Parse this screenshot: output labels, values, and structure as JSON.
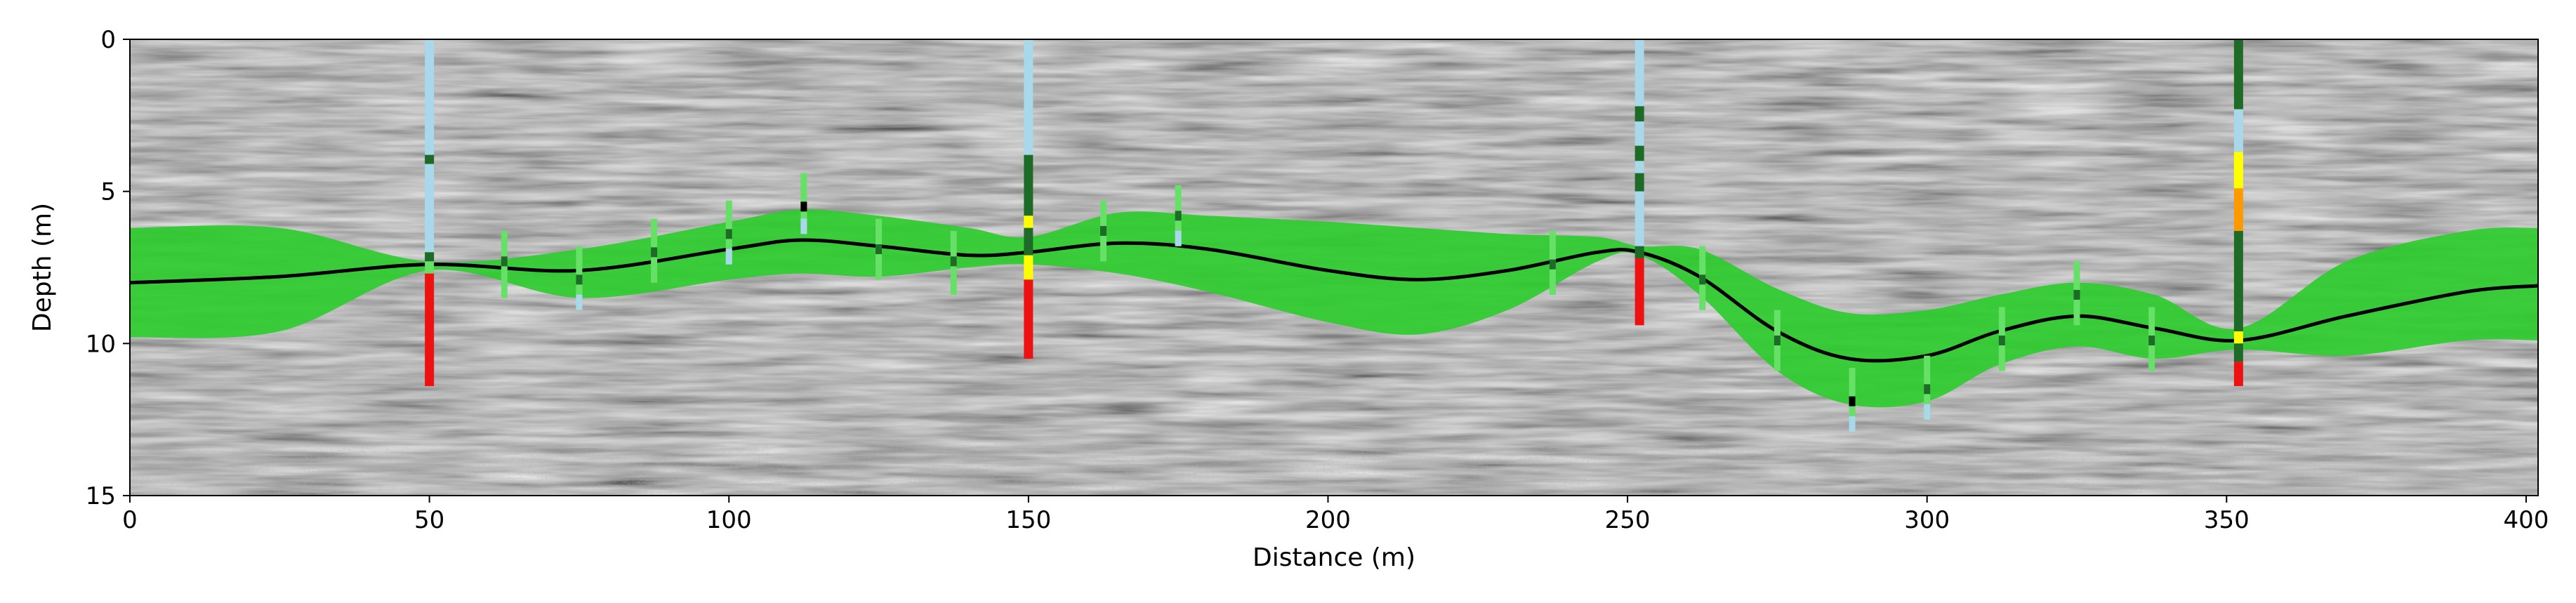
{
  "chart_data": {
    "type": "line",
    "title": "",
    "xlabel": "Distance (m)",
    "ylabel": "Depth (m)",
    "xlim": [
      0,
      402
    ],
    "ylim": [
      15,
      0
    ],
    "x_ticks": [
      0,
      50,
      100,
      150,
      200,
      250,
      300,
      350,
      400
    ],
    "y_ticks": [
      0,
      5,
      10,
      15
    ],
    "grid": false,
    "legend": "none",
    "background": "grayscale radargram (ground-penetrating radar section)",
    "colors": {
      "band": "#2ecc2e",
      "curve": "#000000",
      "light_blue": "#a8d8ea",
      "dark_green": "#1e6b28",
      "light_green": "#66e066",
      "red": "#ee1111",
      "yellow": "#ffff00",
      "orange": "#ff9900",
      "black": "#000000"
    },
    "series": [
      {
        "kind": "curve",
        "x": [
          0,
          25,
          50,
          75,
          100,
          112,
          125,
          140,
          150,
          165,
          180,
          200,
          215,
          230,
          245,
          252,
          262,
          275,
          287,
          300,
          312,
          325,
          338,
          352,
          370,
          390,
          402
        ],
        "y": [
          8.0,
          7.8,
          7.4,
          7.6,
          6.9,
          6.6,
          6.8,
          7.1,
          7.0,
          6.7,
          6.9,
          7.6,
          7.9,
          7.6,
          7.0,
          7.0,
          7.8,
          9.6,
          10.5,
          10.4,
          9.6,
          9.1,
          9.5,
          9.9,
          9.1,
          8.3,
          8.1
        ]
      },
      {
        "kind": "band",
        "x": [
          0,
          25,
          50,
          75,
          100,
          112,
          125,
          140,
          150,
          165,
          180,
          200,
          215,
          230,
          245,
          252,
          262,
          275,
          287,
          300,
          312,
          325,
          338,
          352,
          370,
          390,
          402
        ],
        "lower": [
          6.2,
          6.2,
          7.3,
          6.9,
          6.0,
          5.6,
          5.8,
          6.2,
          6.5,
          5.7,
          5.8,
          6.0,
          6.2,
          6.4,
          6.5,
          6.8,
          6.9,
          8.2,
          9.0,
          8.9,
          8.4,
          8.0,
          8.4,
          9.5,
          7.3,
          6.3,
          6.2
        ],
        "upper": [
          9.8,
          9.6,
          7.6,
          8.5,
          7.9,
          7.7,
          7.8,
          7.5,
          7.4,
          7.7,
          8.3,
          9.3,
          9.7,
          8.9,
          7.3,
          7.1,
          8.4,
          10.9,
          12.0,
          11.9,
          10.7,
          10.1,
          10.5,
          10.2,
          10.4,
          9.9,
          9.9
        ]
      }
    ],
    "logs": [
      {
        "x": 50,
        "segments": [
          {
            "top": 0,
            "bottom": 3.8,
            "color": "light_blue"
          },
          {
            "top": 3.8,
            "bottom": 4.1,
            "color": "dark_green"
          },
          {
            "top": 4.1,
            "bottom": 7.0,
            "color": "light_blue"
          },
          {
            "top": 7.0,
            "bottom": 7.3,
            "color": "dark_green"
          },
          {
            "top": 7.3,
            "bottom": 7.7,
            "color": "light_green"
          },
          {
            "top": 7.7,
            "bottom": 11.4,
            "color": "red"
          }
        ]
      },
      {
        "x": 150,
        "segments": [
          {
            "top": 0,
            "bottom": 3.8,
            "color": "light_blue"
          },
          {
            "top": 3.8,
            "bottom": 5.8,
            "color": "dark_green"
          },
          {
            "top": 5.8,
            "bottom": 6.2,
            "color": "yellow"
          },
          {
            "top": 6.2,
            "bottom": 7.1,
            "color": "dark_green"
          },
          {
            "top": 7.1,
            "bottom": 7.9,
            "color": "yellow"
          },
          {
            "top": 7.9,
            "bottom": 10.5,
            "color": "red"
          }
        ]
      },
      {
        "x": 252,
        "segments": [
          {
            "top": 0,
            "bottom": 2.2,
            "color": "light_blue"
          },
          {
            "top": 2.2,
            "bottom": 2.7,
            "color": "dark_green"
          },
          {
            "top": 2.7,
            "bottom": 3.5,
            "color": "light_blue"
          },
          {
            "top": 3.5,
            "bottom": 4.0,
            "color": "dark_green"
          },
          {
            "top": 4.0,
            "bottom": 4.4,
            "color": "light_blue"
          },
          {
            "top": 4.4,
            "bottom": 5.0,
            "color": "dark_green"
          },
          {
            "top": 5.0,
            "bottom": 6.8,
            "color": "light_blue"
          },
          {
            "top": 6.8,
            "bottom": 7.2,
            "color": "dark_green"
          },
          {
            "top": 7.2,
            "bottom": 9.4,
            "color": "red"
          }
        ]
      },
      {
        "x": 352,
        "segments": [
          {
            "top": 0,
            "bottom": 2.3,
            "color": "dark_green"
          },
          {
            "top": 2.3,
            "bottom": 3.7,
            "color": "light_blue"
          },
          {
            "top": 3.7,
            "bottom": 4.9,
            "color": "yellow"
          },
          {
            "top": 4.9,
            "bottom": 6.3,
            "color": "orange"
          },
          {
            "top": 6.3,
            "bottom": 9.6,
            "color": "dark_green"
          },
          {
            "top": 9.6,
            "bottom": 10.0,
            "color": "yellow"
          },
          {
            "top": 10.0,
            "bottom": 10.6,
            "color": "dark_green"
          },
          {
            "top": 10.6,
            "bottom": 11.4,
            "color": "red"
          }
        ]
      }
    ],
    "ticks": [
      {
        "x": 62.5,
        "top": 6.3,
        "bottom": 8.5,
        "mark": 7.3
      },
      {
        "x": 75,
        "top": 6.8,
        "bottom": 8.9,
        "mark": 7.9
      },
      {
        "x": 87.5,
        "top": 5.9,
        "bottom": 8.0,
        "mark": 7.0
      },
      {
        "x": 100,
        "top": 5.3,
        "bottom": 7.4,
        "mark": 6.4
      },
      {
        "x": 112.5,
        "top": 4.4,
        "bottom": 6.4,
        "mark": 5.5,
        "mark_color": "black"
      },
      {
        "x": 125,
        "top": 5.9,
        "bottom": 7.9,
        "mark": 6.9
      },
      {
        "x": 137.5,
        "top": 6.3,
        "bottom": 8.4,
        "mark": 7.3
      },
      {
        "x": 162.5,
        "top": 5.3,
        "bottom": 7.3,
        "mark": 6.3
      },
      {
        "x": 175,
        "top": 4.8,
        "bottom": 6.8,
        "mark": 5.8
      },
      {
        "x": 237.5,
        "top": 6.3,
        "bottom": 8.4,
        "mark": 7.4
      },
      {
        "x": 262.5,
        "top": 6.8,
        "bottom": 8.9,
        "mark": 7.9
      },
      {
        "x": 275,
        "top": 8.9,
        "bottom": 10.9,
        "mark": 9.9
      },
      {
        "x": 287.5,
        "top": 10.8,
        "bottom": 12.9,
        "mark": 11.9,
        "mark_color": "black"
      },
      {
        "x": 300,
        "top": 10.4,
        "bottom": 12.5,
        "mark": 11.5
      },
      {
        "x": 312.5,
        "top": 8.8,
        "bottom": 10.9,
        "mark": 9.9
      },
      {
        "x": 325,
        "top": 7.3,
        "bottom": 9.4,
        "mark": 8.4
      },
      {
        "x": 337.5,
        "top": 8.8,
        "bottom": 10.9,
        "mark": 9.9
      }
    ]
  }
}
